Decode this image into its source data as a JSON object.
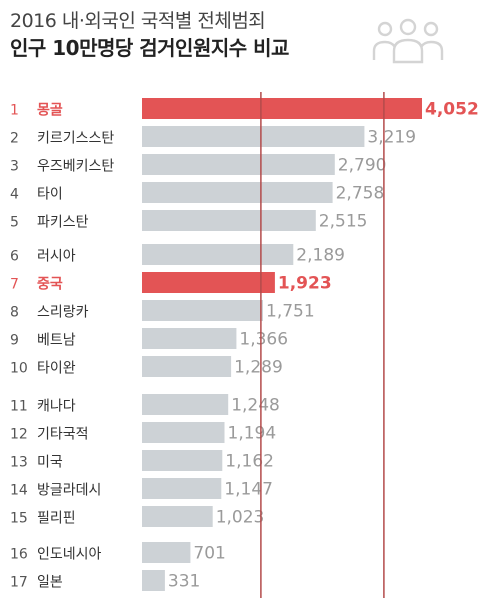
{
  "header": {
    "line1": "2016 내·외국인 국적별 전체범죄",
    "line2": "인구 10만명당 검거인원지수 비교",
    "icon": "people-group-icon"
  },
  "colors": {
    "highlight": "#e35455",
    "bar": "#cdd2d6",
    "rank_highlight": "#e35455",
    "rank_normal": "#555555",
    "value_normal": "#9a9a9a",
    "reference_line": "#b34a4a"
  },
  "chart_data": {
    "type": "bar",
    "orientation": "horizontal",
    "title": "2016 내·외국인 국적별 전체범죄 인구 10만명당 검거인원지수 비교",
    "categories": [
      "몽골",
      "키르기스스탄",
      "우즈베키스탄",
      "타이",
      "파키스탄",
      "러시아",
      "중국",
      "스리랑카",
      "베트남",
      "타이완",
      "캐나다",
      "기타국적",
      "미국",
      "방글라데시",
      "필리핀",
      "인도네시아",
      "일본"
    ],
    "ranks": [
      "1",
      "2",
      "3",
      "4",
      "5",
      "6",
      "7",
      "8",
      "9",
      "10",
      "11",
      "12",
      "13",
      "14",
      "15",
      "16",
      "17"
    ],
    "values": [
      4052,
      3219,
      2790,
      2758,
      2515,
      2189,
      1923,
      1751,
      1366,
      1289,
      1248,
      1194,
      1162,
      1147,
      1023,
      701,
      331
    ],
    "value_labels": [
      "4,052",
      "3,219",
      "2,790",
      "2,758",
      "2,515",
      "2,189",
      "1,923",
      "1,751",
      "1,366",
      "1,289",
      "1,248",
      "1,194",
      "1,162",
      "1,147",
      "1,023",
      "701",
      "331"
    ],
    "highlighted": [
      0,
      6
    ],
    "groups": [
      [
        0,
        1,
        2,
        3,
        4
      ],
      [
        5,
        6,
        7,
        8,
        9
      ],
      [
        10,
        11,
        12,
        13,
        14
      ],
      [
        15,
        16
      ]
    ],
    "reference_lines": [
      1720,
      3500
    ]
  }
}
